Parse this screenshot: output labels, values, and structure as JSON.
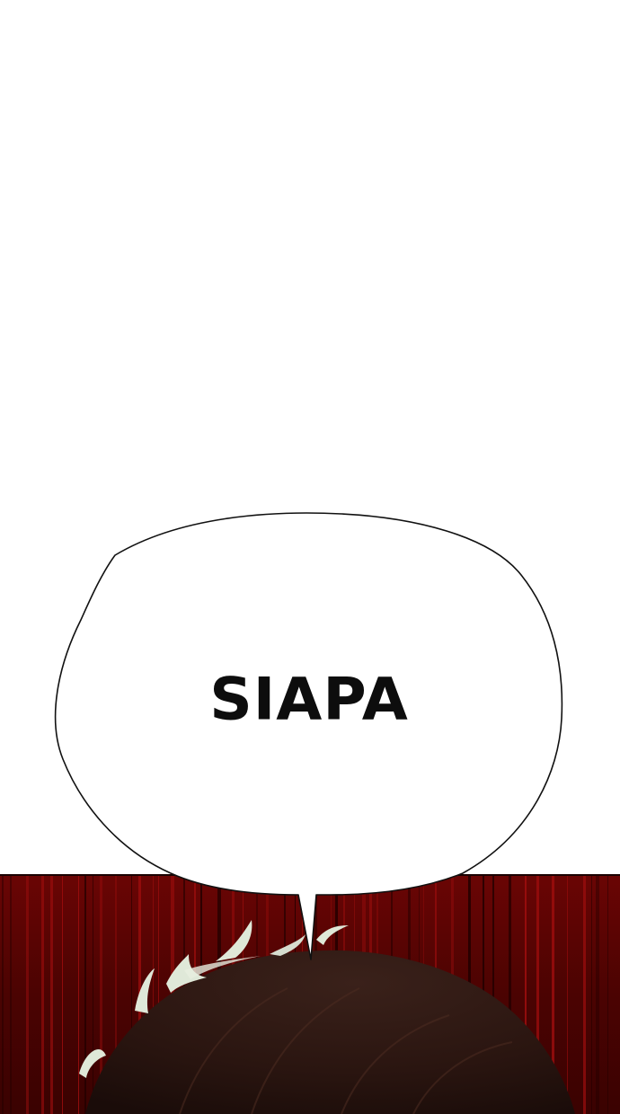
{
  "panel": {
    "speech_bubble": {
      "text": "SIAPA"
    }
  },
  "colors": {
    "background": "#ffffff",
    "dark_red_backdrop": "#5a0000",
    "bright_red_streak": "#a00e0e",
    "hair_dark": "#2c1612",
    "hair_highlight": "#dfe8d8",
    "bubble_fill": "#ffffff",
    "bubble_outline": "#111111",
    "text_color": "#0d0d0d"
  }
}
